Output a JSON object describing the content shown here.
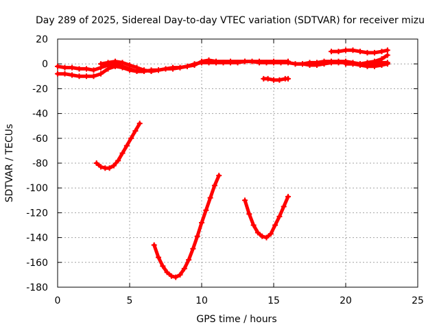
{
  "chart_data": {
    "type": "scatter",
    "title": "Day 289 of 2025, Sidereal Day-to-day VTEC variation (SDTVAR) for receiver mizu",
    "xlabel": "GPS time / hours",
    "ylabel": "SDTVAR / TECUs",
    "xlim": [
      0,
      25
    ],
    "ylim": [
      -180,
      20
    ],
    "xticks": [
      0,
      5,
      10,
      15,
      20,
      25
    ],
    "yticks": [
      20,
      0,
      -20,
      -40,
      -60,
      -80,
      -100,
      -120,
      -140,
      -160,
      -180
    ],
    "grid": true,
    "marker": "plus",
    "color": "#ff0000",
    "series": [
      {
        "name": "s1",
        "x": [
          0.0,
          0.5,
          1.0,
          1.5,
          2.0,
          2.5,
          3.0,
          3.5,
          4.0,
          4.5,
          5.0,
          5.5,
          6.0,
          6.5,
          7.0,
          7.5,
          8.0,
          8.5,
          9.0,
          9.5,
          10.0,
          10.5,
          11.0,
          11.5,
          12.0,
          12.5,
          13.0,
          13.5,
          14.0,
          14.5,
          15.0,
          15.5,
          16.0,
          16.5,
          17.0,
          17.5,
          18.0,
          18.5,
          19.0,
          19.5,
          20.0,
          20.5,
          21.0,
          21.5,
          22.0,
          22.5,
          22.9
        ],
        "y": [
          -2,
          -3,
          -3,
          -4,
          -4,
          -5,
          -3,
          -1,
          0,
          -2,
          -4,
          -6,
          -6,
          -5,
          -5,
          -4,
          -3,
          -3,
          -2,
          0,
          1,
          1,
          1,
          1,
          1,
          1,
          2,
          2,
          1,
          1,
          1,
          1,
          1,
          0,
          0,
          -1,
          -1,
          0,
          1,
          1,
          1,
          0,
          -1,
          -2,
          -2,
          -1,
          0
        ]
      },
      {
        "name": "s2",
        "x": [
          0.0,
          0.5,
          1.0,
          1.5,
          2.0,
          2.5,
          3.0,
          3.5,
          4.0,
          4.5,
          5.0,
          5.5,
          6.0
        ],
        "y": [
          -8,
          -8,
          -9,
          -10,
          -10,
          -10,
          -8,
          -4,
          -2,
          -3,
          -5,
          -6,
          -6
        ]
      },
      {
        "name": "s3",
        "x": [
          3.0,
          3.5,
          4.0,
          4.5,
          5.0,
          5.5,
          6.0,
          6.5,
          7.0,
          7.5,
          8.0,
          8.5,
          9.0,
          9.5,
          10.0,
          10.5,
          11.0,
          12.0,
          13.0,
          14.0,
          15.0,
          16.0
        ],
        "y": [
          0,
          1,
          2,
          1,
          -1,
          -3,
          -5,
          -6,
          -5,
          -4,
          -4,
          -3,
          -2,
          -1,
          2,
          3,
          2,
          2,
          2,
          2,
          2,
          2
        ]
      },
      {
        "name": "s4",
        "x": [
          16.5,
          17.0,
          17.5,
          18.0,
          18.5,
          19.0,
          19.5,
          20.0,
          20.5,
          21.0,
          21.5,
          22.0,
          22.5,
          22.9
        ],
        "y": [
          0,
          0,
          1,
          1,
          2,
          2,
          2,
          2,
          1,
          0,
          0,
          0,
          1,
          1
        ]
      },
      {
        "name": "s5",
        "x": [
          19.0,
          19.5,
          20.0,
          20.5,
          21.0,
          21.5,
          22.0,
          22.5,
          22.9
        ],
        "y": [
          10,
          10,
          11,
          11,
          10,
          9,
          9,
          10,
          11
        ]
      },
      {
        "name": "s6",
        "x": [
          20.0,
          20.5,
          21.0,
          21.5,
          22.0,
          22.5,
          22.9
        ],
        "y": [
          0,
          0,
          0,
          1,
          2,
          4,
          7
        ]
      },
      {
        "name": "s7",
        "x": [
          14.3,
          14.6,
          15.0,
          15.4,
          15.8,
          16.0
        ],
        "y": [
          -12,
          -12,
          -13,
          -13,
          -12,
          -12
        ]
      },
      {
        "name": "s8",
        "x": [
          2.7,
          3.0,
          3.3,
          3.6,
          3.9,
          4.2,
          4.5,
          4.8,
          5.1,
          5.4,
          5.7
        ],
        "y": [
          -80,
          -83,
          -84,
          -84,
          -82,
          -78,
          -72,
          -66,
          -60,
          -54,
          -48
        ]
      },
      {
        "name": "s9",
        "x": [
          6.7,
          7.0,
          7.3,
          7.6,
          7.9,
          8.2,
          8.5,
          8.8,
          9.1,
          9.4,
          9.7,
          10.0,
          10.3,
          10.6,
          10.9,
          11.2
        ],
        "y": [
          -146,
          -156,
          -163,
          -168,
          -171,
          -172,
          -170,
          -165,
          -158,
          -149,
          -139,
          -128,
          -118,
          -108,
          -98,
          -90
        ]
      },
      {
        "name": "s10",
        "x": [
          13.0,
          13.3,
          13.6,
          13.9,
          14.2,
          14.5,
          14.8,
          15.1,
          15.4,
          15.7,
          16.0
        ],
        "y": [
          -110,
          -121,
          -130,
          -136,
          -139,
          -140,
          -137,
          -130,
          -123,
          -115,
          -107
        ]
      }
    ]
  }
}
